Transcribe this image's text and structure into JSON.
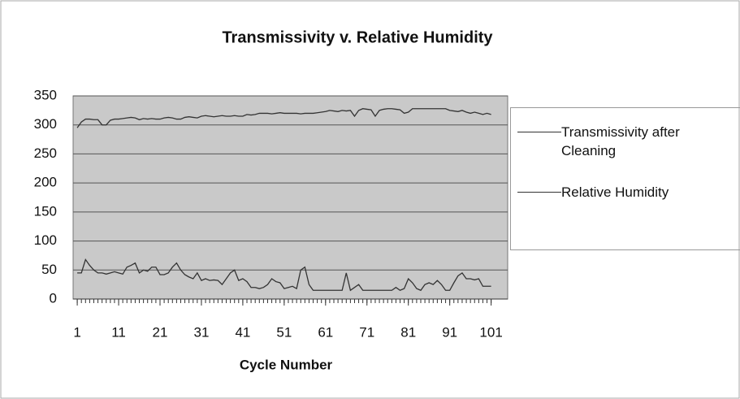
{
  "chart_data": {
    "type": "line",
    "title": "Transmissivity v. Relative Humidity",
    "x_label": "Cycle Number",
    "x": [
      1,
      2,
      3,
      4,
      5,
      6,
      7,
      8,
      9,
      10,
      11,
      12,
      13,
      14,
      15,
      16,
      17,
      18,
      19,
      20,
      21,
      22,
      23,
      24,
      25,
      26,
      27,
      28,
      29,
      30,
      31,
      32,
      33,
      34,
      35,
      36,
      37,
      38,
      39,
      40,
      41,
      42,
      43,
      44,
      45,
      46,
      47,
      48,
      49,
      50,
      51,
      52,
      53,
      54,
      55,
      56,
      57,
      58,
      59,
      60,
      61,
      62,
      63,
      64,
      65,
      66,
      67,
      68,
      69,
      70,
      71,
      72,
      73,
      74,
      75,
      76,
      77,
      78,
      79,
      80,
      81,
      82,
      83,
      84,
      85,
      86,
      87,
      88,
      89,
      90,
      91,
      92,
      93,
      94,
      95,
      96,
      97,
      98,
      99,
      100,
      101
    ],
    "xlim": [
      0,
      105
    ],
    "xticks": [
      1,
      11,
      21,
      31,
      41,
      51,
      61,
      71,
      81,
      91,
      101
    ],
    "ylim": [
      0,
      350
    ],
    "yticks": [
      0,
      50,
      100,
      150,
      200,
      250,
      300,
      350
    ],
    "grid": true,
    "series": [
      {
        "name": "Transmissivity after Cleaning",
        "color": "#333333",
        "values": [
          295,
          305,
          310,
          310,
          309,
          309,
          300,
          300,
          308,
          310,
          310,
          311,
          312,
          313,
          312,
          309,
          311,
          310,
          311,
          310,
          310,
          312,
          313,
          312,
          310,
          310,
          313,
          314,
          313,
          312,
          315,
          316,
          315,
          314,
          315,
          316,
          315,
          315,
          316,
          315,
          315,
          318,
          317,
          318,
          320,
          320,
          320,
          319,
          320,
          321,
          320,
          320,
          320,
          320,
          319,
          320,
          320,
          320,
          321,
          322,
          323,
          325,
          324,
          323,
          325,
          324,
          325,
          315,
          325,
          328,
          327,
          326,
          315,
          325,
          327,
          328,
          328,
          327,
          326,
          320,
          322,
          328,
          328,
          328,
          328,
          328,
          328,
          328,
          328,
          328,
          325,
          324,
          323,
          325,
          322,
          320,
          322,
          320,
          318,
          320,
          318
        ]
      },
      {
        "name": "Relative Humidity",
        "color": "#333333",
        "values": [
          45,
          45,
          68,
          58,
          50,
          45,
          45,
          43,
          45,
          47,
          45,
          43,
          55,
          58,
          62,
          45,
          50,
          48,
          55,
          55,
          42,
          42,
          45,
          55,
          62,
          50,
          42,
          38,
          35,
          45,
          32,
          35,
          32,
          33,
          32,
          25,
          35,
          45,
          50,
          32,
          35,
          30,
          20,
          20,
          18,
          20,
          25,
          35,
          30,
          28,
          18,
          20,
          22,
          18,
          50,
          55,
          25,
          15,
          15,
          15,
          15,
          15,
          15,
          15,
          15,
          45,
          15,
          20,
          25,
          15,
          15,
          15,
          15,
          15,
          15,
          15,
          15,
          20,
          15,
          18,
          35,
          28,
          18,
          15,
          25,
          28,
          25,
          32,
          25,
          15,
          15,
          28,
          40,
          45,
          35,
          35,
          33,
          35,
          22,
          22,
          22
        ]
      }
    ]
  }
}
